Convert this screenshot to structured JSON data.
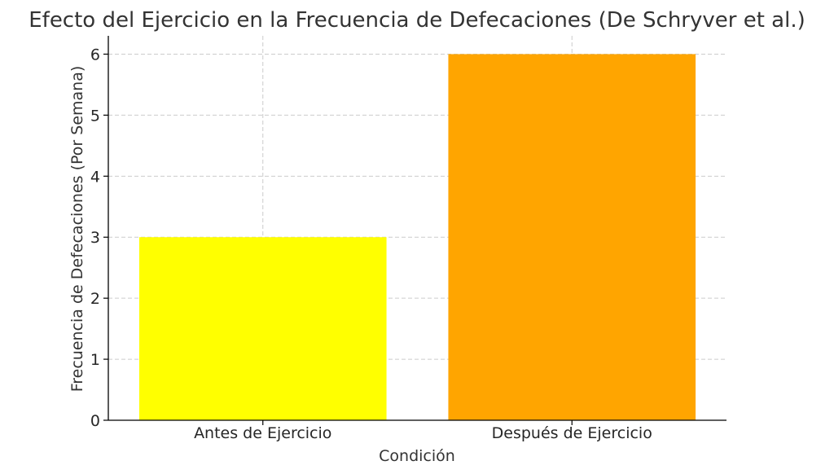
{
  "chart_data": {
    "type": "bar",
    "title": "Efecto del Ejercicio en la Frecuencia de Defecaciones (De Schryver et al.)",
    "xlabel": "Condición",
    "ylabel": "Frecuencia de Defecaciones (Por Semana)",
    "categories": [
      "Antes de Ejercicio",
      "Después de Ejercicio"
    ],
    "values": [
      3,
      6
    ],
    "colors": [
      "#ffff00",
      "#ffa500"
    ],
    "ylim": [
      0,
      6.3
    ],
    "yticks": [
      0,
      1,
      2,
      3,
      4,
      5,
      6
    ],
    "grid": true,
    "legend": "none"
  }
}
